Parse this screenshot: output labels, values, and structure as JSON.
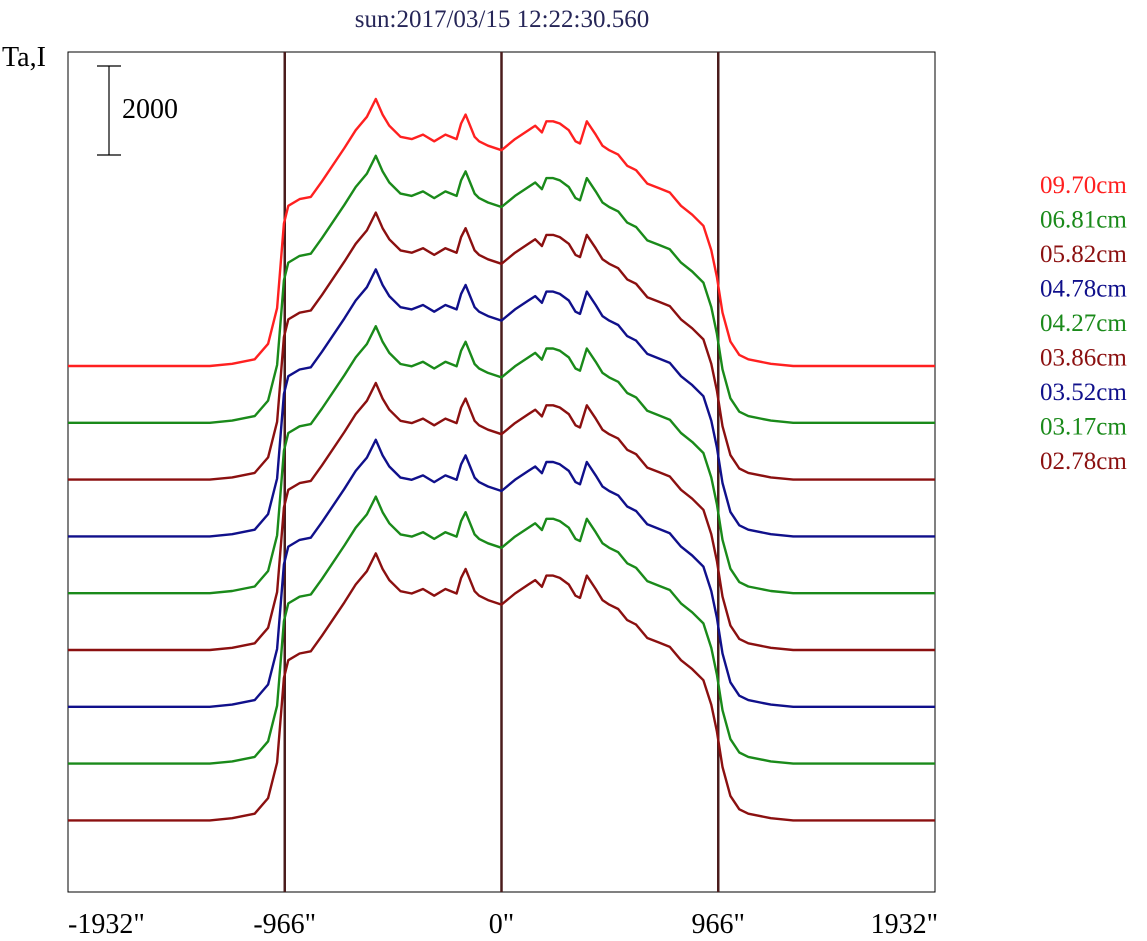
{
  "chart_data": {
    "type": "line",
    "title": "sun:2017/03/15 12:22:30.560",
    "ylabel": "Ta,I",
    "scale_bar_label": "2000",
    "scale_bar_value": 2000,
    "x_tick_labels": [
      "-1932\"",
      "-966\"",
      "0\"",
      "966\"",
      "1932\""
    ],
    "x_tick_values": [
      -1932,
      -966,
      0,
      966,
      1932
    ],
    "xlim": [
      -1932,
      1932
    ],
    "vertical_markers": [
      -966,
      0,
      966
    ],
    "grid": false,
    "legend_placement": "right",
    "series": [
      {
        "name": "09.70cm",
        "color": "#ff2020"
      },
      {
        "name": "06.81cm",
        "color": "#1a8a1a"
      },
      {
        "name": "05.82cm",
        "color": "#8b1010"
      },
      {
        "name": "04.78cm",
        "color": "#10108b"
      },
      {
        "name": "04.27cm",
        "color": "#1a8a1a"
      },
      {
        "name": "03.86cm",
        "color": "#8b1010"
      },
      {
        "name": "03.52cm",
        "color": "#10108b"
      },
      {
        "name": "03.17cm",
        "color": "#1a8a1a"
      },
      {
        "name": "02.78cm",
        "color": "#8b1010"
      }
    ],
    "profile": {
      "x": [
        -1932,
        -1300,
        -1200,
        -1100,
        -1040,
        -1000,
        -970,
        -950,
        -900,
        -850,
        -800,
        -700,
        -650,
        -600,
        -560,
        -530,
        -500,
        -450,
        -400,
        -350,
        -300,
        -250,
        -200,
        -180,
        -160,
        -140,
        -120,
        -100,
        -60,
        0,
        60,
        120,
        150,
        180,
        200,
        230,
        260,
        300,
        330,
        350,
        380,
        420,
        450,
        480,
        520,
        560,
        600,
        650,
        700,
        750,
        800,
        850,
        900,
        935,
        960,
        985,
        1020,
        1060,
        1100,
        1200,
        1300,
        1932
      ],
      "y": [
        0,
        0,
        50,
        150,
        500,
        1300,
        3200,
        3600,
        3750,
        3800,
        4150,
        4900,
        5300,
        5600,
        6000,
        5650,
        5400,
        5150,
        5100,
        5200,
        5050,
        5200,
        5100,
        5450,
        5650,
        5400,
        5150,
        5050,
        4950,
        4850,
        5100,
        5300,
        5400,
        5250,
        5500,
        5500,
        5450,
        5300,
        5050,
        5000,
        5500,
        5200,
        4950,
        4850,
        4750,
        4500,
        4400,
        4100,
        4000,
        3900,
        3600,
        3400,
        3150,
        2600,
        2000,
        1200,
        550,
        250,
        150,
        50,
        0,
        0
      ]
    }
  }
}
